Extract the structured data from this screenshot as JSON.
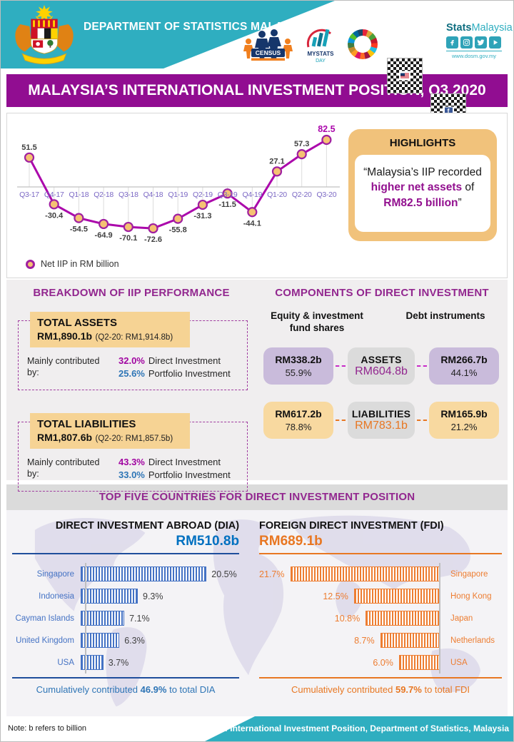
{
  "header": {
    "department_title": "DEPARTMENT OF STATISTICS MALAYSIA",
    "brand": {
      "bold": "Stats",
      "light": "Malaysia",
      "website": "www.dosm.gov.my"
    },
    "logos": {
      "census_label": "CENSUS",
      "mystats_label": "MYSTATS",
      "mystats_sub": "DAY"
    }
  },
  "title_bar": "MALAYSIA’S INTERNATIONAL INVESTMENT POSITION, Q3 2020",
  "chart_data": [
    {
      "id": "net_iip",
      "type": "line",
      "legend": "Net IIP in RM billion",
      "categories": [
        "Q3-17",
        "Q4-17",
        "Q1-18",
        "Q2-18",
        "Q3-18",
        "Q4-18",
        "Q1-19",
        "Q2-19",
        "Q3-19",
        "Q4-19",
        "Q1-20",
        "Q2-20",
        "Q3-20"
      ],
      "values": [
        51.5,
        -30.4,
        -54.5,
        -64.9,
        -70.1,
        -72.6,
        -55.8,
        -31.3,
        -11.5,
        -44.1,
        27.1,
        57.3,
        82.5
      ],
      "ylim": [
        -90,
        100
      ],
      "grid": "droplines",
      "legend_position": "bottom-left",
      "line_color": "#AB07AB",
      "marker_fill": "#F5C273",
      "marker_stroke": "#A020A0",
      "axis_label_color": "#7B68C4",
      "value_label_color": "#404040",
      "last_value_color": "#AB07AB"
    },
    {
      "id": "dia",
      "type": "bar",
      "orientation": "horizontal-left-axis",
      "title": "DIRECT INVESTMENT ABROAD (DIA)",
      "total": "RM510.8b",
      "categories": [
        "Singapore",
        "Indonesia",
        "Cayman Islands",
        "United Kingdom",
        "USA"
      ],
      "values": [
        20.5,
        9.3,
        7.1,
        6.3,
        3.7
      ],
      "value_suffix": "%",
      "bar_color": "#4472C4",
      "total_color": "#0070C0",
      "footer": {
        "prefix": "Cumulatively contributed ",
        "value": "46.9%",
        "suffix": " to total DIA"
      }
    },
    {
      "id": "fdi",
      "type": "bar",
      "orientation": "horizontal-right-axis",
      "title": "FOREIGN DIRECT INVESTMENT (FDI)",
      "total": "RM689.1b",
      "categories": [
        "Singapore",
        "Hong Kong",
        "Japan",
        "Netherlands",
        "USA"
      ],
      "values": [
        21.7,
        12.5,
        10.8,
        8.7,
        6.0
      ],
      "value_suffix": "%",
      "bar_color": "#ED7D31",
      "total_color": "#E87722",
      "footer": {
        "prefix": "Cumulatively contributed ",
        "value": "59.7%",
        "suffix": " to total FDI"
      }
    }
  ],
  "highlights": {
    "title": "HIGHLIGHTS",
    "quote": {
      "p1": "“Malaysia’s IIP recorded ",
      "accent1": "higher net assets",
      "p2": " of ",
      "accent2": "RM82.5 billion",
      "p3": "”"
    }
  },
  "breakdown": {
    "heading": "BREAKDOWN OF IIP PERFORMANCE",
    "cards": [
      {
        "title": "TOTAL ASSETS",
        "value": "RM1,890.1b",
        "previous": "(Q2-20: RM1,914.8b)",
        "contrib_label": "Mainly contributed by:",
        "items": [
          {
            "pct": "32.0%",
            "label": "Direct Investment"
          },
          {
            "pct": "25.6%",
            "label": "Portfolio Investment"
          }
        ]
      },
      {
        "title": "TOTAL LIABILITIES",
        "value": "RM1,807.6b",
        "previous": "(Q2-20: RM1,857.5b)",
        "contrib_label": "Mainly contributed by:",
        "items": [
          {
            "pct": "43.3%",
            "label": "Direct Investment"
          },
          {
            "pct": "33.0%",
            "label": "Portfolio Investment"
          }
        ]
      }
    ]
  },
  "components": {
    "heading": "COMPONENTS OF DIRECT INVESTMENT",
    "column_left": "Equity & investment fund shares",
    "column_right": "Debt instruments",
    "rows": [
      {
        "left_value": "RM338.2b",
        "left_pct": "55.9%",
        "center_label": "ASSETS",
        "center_value": "RM604.8b",
        "right_value": "RM266.7b",
        "right_pct": "44.1%"
      },
      {
        "left_value": "RM617.2b",
        "left_pct": "78.8%",
        "center_label": "LIABILITIES",
        "center_value": "RM783.1b",
        "right_value": "RM165.9b",
        "right_pct": "21.2%"
      }
    ]
  },
  "top_five_heading": "TOP FIVE COUNTRIES FOR DIRECT INVESTMENT POSITION",
  "footer": {
    "note": "Note: b refers to billion",
    "source": "Source: International Investment Position, Department of Statistics, Malaysia"
  },
  "colors": {
    "teal": "#2FAEC0",
    "purple_banner": "#910D91",
    "heading_purple": "#92278F",
    "tan": "#F6D394",
    "light_purple_box": "#C9BBDB",
    "gray_box": "#DBDBDB",
    "orange": "#E87722",
    "blue": "#2E75B6"
  }
}
